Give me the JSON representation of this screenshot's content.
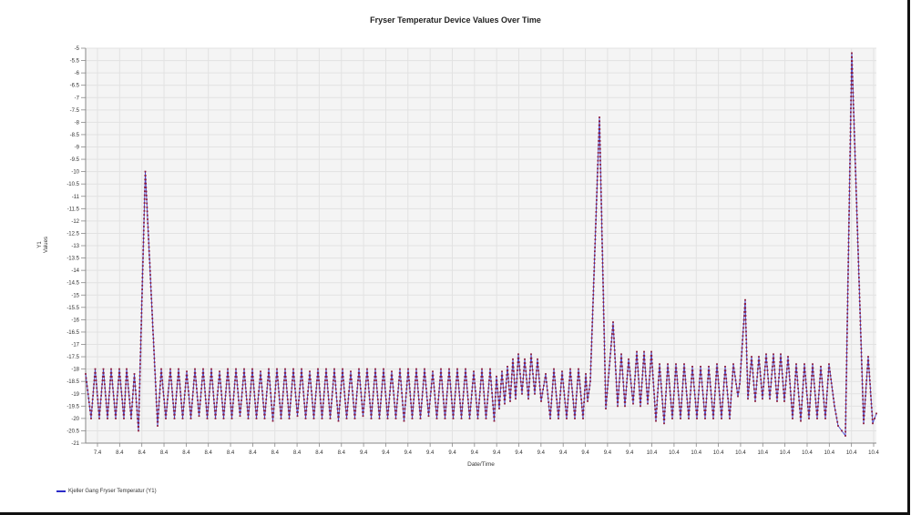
{
  "chart_data": {
    "type": "line",
    "title": "Fryser Temperatur Device Values Over Time",
    "xlabel": "Date/Time",
    "ylabel": [
      "Y1",
      "Values"
    ],
    "ylim": [
      -21,
      -5
    ],
    "ytick_step": 0.5,
    "yticks": [
      "-5",
      "-5.5",
      "-6",
      "-6.5",
      "-7",
      "-7.5",
      "-8",
      "-8.5",
      "-9",
      "-9.5",
      "-10",
      "-10.5",
      "-11",
      "-11.5",
      "-12",
      "-12.5",
      "-13",
      "-13.5",
      "-14",
      "-14.5",
      "-15",
      "-15.5",
      "-16",
      "-16.5",
      "-17",
      "-17.5",
      "-18",
      "-18.5",
      "-19",
      "-19.5",
      "-20",
      "-20.5",
      "-21"
    ],
    "xticks": [
      "7.4",
      "8.4",
      "8.4",
      "8.4",
      "8.4",
      "8.4",
      "8.4",
      "8.4",
      "8.4",
      "8.4",
      "8.4",
      "8.4",
      "9.4",
      "9.4",
      "9.4",
      "9.4",
      "9.4",
      "9.4",
      "9.4",
      "9.4",
      "9.4",
      "9.4",
      "9.4",
      "9.4",
      "9.4",
      "10.4",
      "10.4",
      "10.4",
      "10.4",
      "10.4",
      "10.4",
      "10.4",
      "10.4",
      "10.4",
      "10.4",
      "10.4"
    ],
    "xlim": [
      0,
      868
    ],
    "x_unit_note": "sample index",
    "grid": true,
    "legend_position": "bottom-left",
    "series": [
      {
        "name": "Kjeller Gang Fryser Temperatur (Y1)",
        "line_color": "#2b2bc8",
        "marker_color": "#8b1a3a",
        "points": [
          [
            0,
            -18.2
          ],
          [
            6,
            -20
          ],
          [
            10.5,
            -18
          ],
          [
            15,
            -20
          ],
          [
            19.5,
            -18
          ],
          [
            24,
            -20
          ],
          [
            28,
            -18
          ],
          [
            33,
            -20
          ],
          [
            37,
            -18
          ],
          [
            42,
            -20
          ],
          [
            45,
            -18
          ],
          [
            50,
            -20
          ],
          [
            53.5,
            -18.2
          ],
          [
            58,
            -20.5
          ],
          [
            65.5,
            -10
          ],
          [
            79,
            -20.3
          ],
          [
            83,
            -18
          ],
          [
            88,
            -20
          ],
          [
            93,
            -18
          ],
          [
            97.5,
            -20
          ],
          [
            102,
            -18
          ],
          [
            106.5,
            -20
          ],
          [
            111,
            -18.1
          ],
          [
            115.5,
            -20
          ],
          [
            120,
            -18
          ],
          [
            124.5,
            -19.9
          ],
          [
            129,
            -18
          ],
          [
            133.5,
            -20
          ],
          [
            138,
            -18
          ],
          [
            142.5,
            -20
          ],
          [
            147,
            -18.1
          ],
          [
            151.5,
            -20
          ],
          [
            156,
            -18
          ],
          [
            160.5,
            -20
          ],
          [
            165,
            -18
          ],
          [
            169.5,
            -19.9
          ],
          [
            174,
            -18
          ],
          [
            178.5,
            -20
          ],
          [
            183,
            -18
          ],
          [
            187.5,
            -20
          ],
          [
            192,
            -18.1
          ],
          [
            196.5,
            -20
          ],
          [
            201,
            -18
          ],
          [
            205.5,
            -20.1
          ],
          [
            210,
            -18
          ],
          [
            214.5,
            -20
          ],
          [
            219,
            -18
          ],
          [
            223.5,
            -20
          ],
          [
            228,
            -18
          ],
          [
            232.5,
            -19.9
          ],
          [
            237,
            -18
          ],
          [
            241.5,
            -20
          ],
          [
            246,
            -18.1
          ],
          [
            250.5,
            -20
          ],
          [
            255,
            -18
          ],
          [
            259.5,
            -20
          ],
          [
            264,
            -18
          ],
          [
            268.5,
            -20
          ],
          [
            273,
            -18
          ],
          [
            277.5,
            -20.1
          ],
          [
            282,
            -18
          ],
          [
            286.5,
            -20
          ],
          [
            291,
            -18.1
          ],
          [
            295.5,
            -20
          ],
          [
            300,
            -18
          ],
          [
            304.5,
            -19.9
          ],
          [
            309,
            -18
          ],
          [
            313.5,
            -20
          ],
          [
            318,
            -18
          ],
          [
            322.5,
            -20
          ],
          [
            327,
            -18
          ],
          [
            331.5,
            -20
          ],
          [
            336,
            -18.1
          ],
          [
            340.5,
            -20
          ],
          [
            345,
            -18
          ],
          [
            349.5,
            -20.1
          ],
          [
            354,
            -18
          ],
          [
            358.5,
            -20
          ],
          [
            363,
            -18
          ],
          [
            367.5,
            -20
          ],
          [
            372,
            -18
          ],
          [
            376.5,
            -19.9
          ],
          [
            381,
            -18.1
          ],
          [
            385.5,
            -20
          ],
          [
            390,
            -18
          ],
          [
            394.5,
            -20
          ],
          [
            399,
            -18
          ],
          [
            403.5,
            -20
          ],
          [
            408,
            -18
          ],
          [
            412.5,
            -20
          ],
          [
            417,
            -18
          ],
          [
            421.5,
            -20
          ],
          [
            426,
            -18.1
          ],
          [
            430.5,
            -20
          ],
          [
            435,
            -18
          ],
          [
            439.5,
            -20
          ],
          [
            444,
            -18
          ],
          [
            448.5,
            -20.1
          ],
          [
            451,
            -18.3
          ],
          [
            454,
            -19.6
          ],
          [
            457,
            -18.1
          ],
          [
            460,
            -19.4
          ],
          [
            463,
            -17.9
          ],
          [
            466,
            -19.3
          ],
          [
            469,
            -17.6
          ],
          [
            472,
            -19.2
          ],
          [
            475,
            -17.4
          ],
          [
            479,
            -19
          ],
          [
            482,
            -17.6
          ],
          [
            486,
            -19.2
          ],
          [
            489,
            -17.4
          ],
          [
            493,
            -19
          ],
          [
            496,
            -17.6
          ],
          [
            500,
            -19.3
          ],
          [
            505,
            -18.2
          ],
          [
            510,
            -20
          ],
          [
            514,
            -18
          ],
          [
            519,
            -20
          ],
          [
            523,
            -18.1
          ],
          [
            528,
            -20
          ],
          [
            532,
            -18
          ],
          [
            537,
            -20
          ],
          [
            541,
            -18
          ],
          [
            546,
            -20
          ],
          [
            549,
            -18.2
          ],
          [
            551,
            -19.3
          ],
          [
            554,
            -18.5
          ],
          [
            564,
            -7.8
          ],
          [
            571,
            -19.6
          ],
          [
            579,
            -16.1
          ],
          [
            584,
            -19.5
          ],
          [
            588,
            -17.4
          ],
          [
            592,
            -19.5
          ],
          [
            596,
            -17.6
          ],
          [
            601,
            -19.4
          ],
          [
            605,
            -17.3
          ],
          [
            609,
            -19.5
          ],
          [
            613,
            -17.3
          ],
          [
            617,
            -19.4
          ],
          [
            621,
            -17.3
          ],
          [
            626,
            -20.1
          ],
          [
            630,
            -17.8
          ],
          [
            635,
            -20.2
          ],
          [
            639,
            -17.8
          ],
          [
            644,
            -20
          ],
          [
            648,
            -17.8
          ],
          [
            653,
            -20
          ],
          [
            657,
            -17.8
          ],
          [
            662,
            -20
          ],
          [
            666,
            -17.9
          ],
          [
            671,
            -20
          ],
          [
            675,
            -17.9
          ],
          [
            680,
            -20
          ],
          [
            684,
            -17.9
          ],
          [
            689,
            -20
          ],
          [
            693,
            -17.8
          ],
          [
            698,
            -20
          ],
          [
            702,
            -17.9
          ],
          [
            707,
            -20
          ],
          [
            711,
            -17.8
          ],
          [
            716,
            -19.1
          ],
          [
            718,
            -18.6
          ],
          [
            724,
            -15.2
          ],
          [
            727,
            -19.2
          ],
          [
            731,
            -17.5
          ],
          [
            735,
            -19.3
          ],
          [
            739,
            -17.5
          ],
          [
            743,
            -19.2
          ],
          [
            747,
            -17.4
          ],
          [
            751,
            -19.2
          ],
          [
            755,
            -17.4
          ],
          [
            759,
            -19.3
          ],
          [
            763,
            -17.4
          ],
          [
            767,
            -19.3
          ],
          [
            771,
            -17.5
          ],
          [
            776,
            -20
          ],
          [
            780,
            -17.8
          ],
          [
            785,
            -20.1
          ],
          [
            789,
            -17.8
          ],
          [
            794,
            -20
          ],
          [
            798,
            -17.8
          ],
          [
            803,
            -20
          ],
          [
            807,
            -17.9
          ],
          [
            812,
            -20
          ],
          [
            816,
            -17.8
          ],
          [
            822,
            -19.5
          ],
          [
            826,
            -20.3
          ],
          [
            834,
            -20.7
          ],
          [
            841,
            -5.2
          ],
          [
            854,
            -20.2
          ],
          [
            859,
            -17.5
          ],
          [
            864,
            -20.2
          ],
          [
            868,
            -19.8
          ]
        ]
      }
    ]
  }
}
